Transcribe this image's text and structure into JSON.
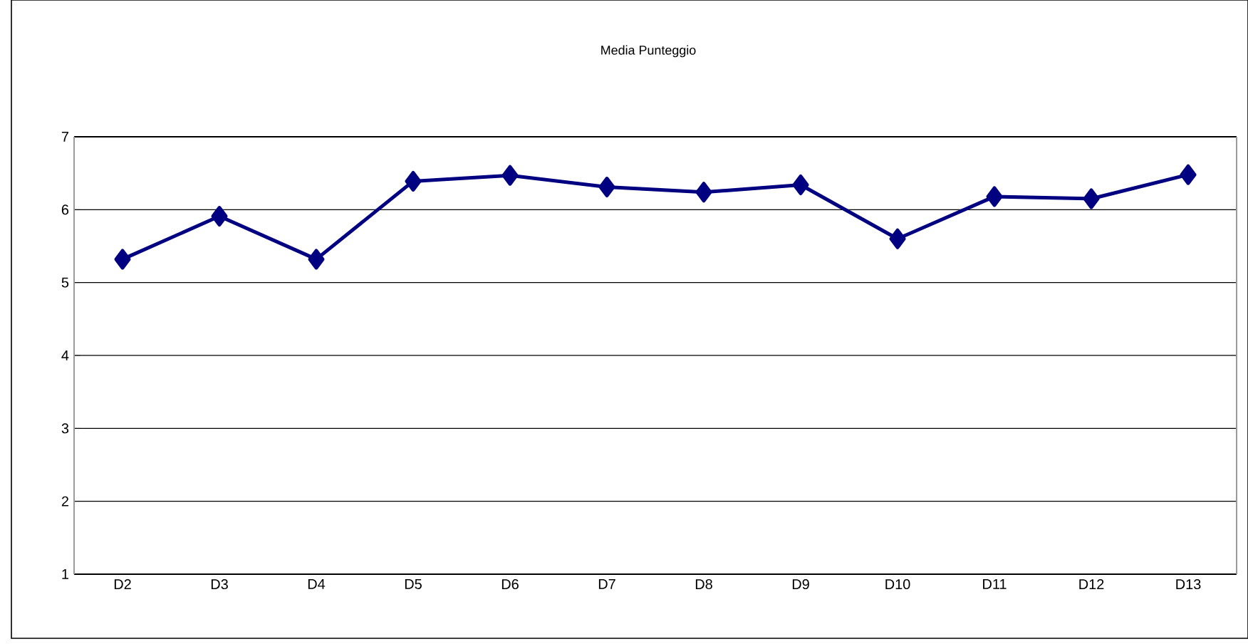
{
  "chart_data": {
    "type": "line",
    "title": "Media Punteggio",
    "categories": [
      "D2",
      "D3",
      "D4",
      "D5",
      "D6",
      "D7",
      "D8",
      "D9",
      "D10",
      "D11",
      "D12",
      "D13"
    ],
    "series": [
      {
        "color": "#000080",
        "values": [
          5.32,
          5.91,
          5.32,
          6.39,
          6.47,
          6.31,
          6.24,
          6.34,
          5.6,
          6.18,
          6.15,
          6.48
        ]
      }
    ],
    "ylim": [
      1,
      7
    ],
    "yticks": [
      1,
      2,
      3,
      4,
      5,
      6,
      7
    ],
    "grid": "y",
    "marker": "diamond",
    "line_style": "solid"
  }
}
